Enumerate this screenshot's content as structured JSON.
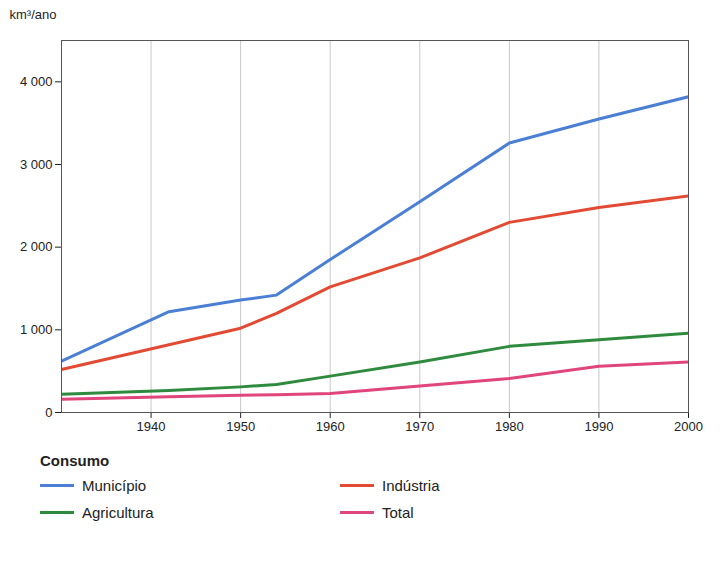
{
  "chart_data": {
    "type": "line",
    "y_label": "km³/ano",
    "legend_title": "Consumo",
    "x": [
      1930,
      1942,
      1950,
      1954,
      1960,
      1970,
      1980,
      1990,
      2000
    ],
    "series": [
      {
        "name": "Município",
        "color": "#4a7fd4",
        "values": [
          620,
          1220,
          1360,
          1420,
          1850,
          2550,
          3260,
          3550,
          3820
        ]
      },
      {
        "name": "Indústria",
        "color": "#e34a33",
        "values": [
          520,
          820,
          1020,
          1200,
          1520,
          1870,
          2300,
          2480,
          2620
        ]
      },
      {
        "name": "Agricultura",
        "color": "#2e8b3e",
        "values": [
          220,
          265,
          310,
          340,
          440,
          610,
          800,
          880,
          960
        ]
      },
      {
        "name": "Total",
        "color": "#e0457b",
        "values": [
          160,
          190,
          210,
          215,
          230,
          320,
          410,
          560,
          610
        ]
      }
    ],
    "xlim": [
      1930,
      2000
    ],
    "xticks": [
      1940,
      1950,
      1960,
      1970,
      1980,
      1990,
      2000
    ],
    "ylim": [
      0,
      4500
    ],
    "yticks": [
      0,
      {
        "value": 1000,
        "label": "1 000"
      },
      {
        "value": 2000,
        "label": "2 000"
      },
      {
        "value": 3000,
        "label": "3 000"
      },
      {
        "value": 4000,
        "label": "4 000"
      }
    ],
    "grid": "x",
    "legend": "bottom"
  }
}
